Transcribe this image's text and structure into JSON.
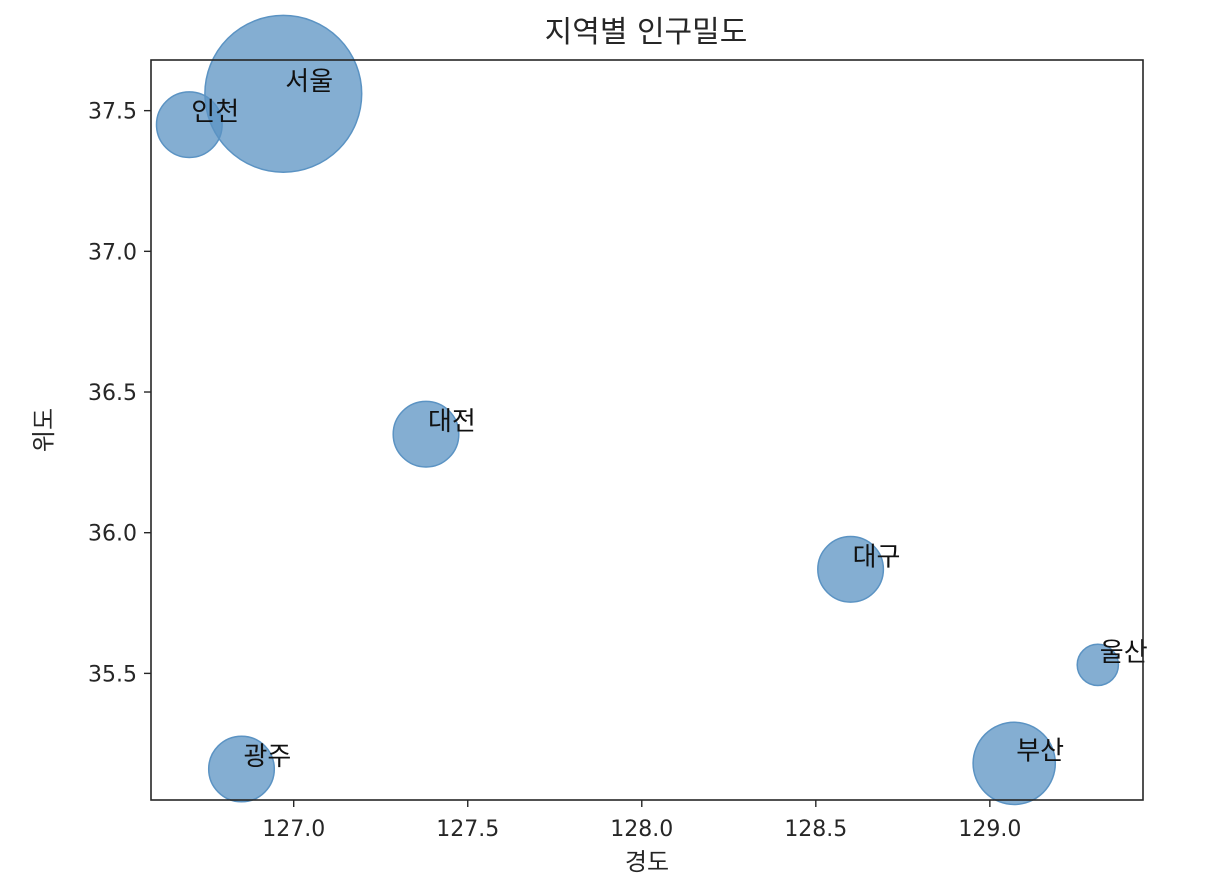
{
  "chart_data": {
    "type": "scatter",
    "title": "지역별 인구밀도",
    "xlabel": "경도",
    "ylabel": "위도",
    "xlim": [
      126.59,
      129.44
    ],
    "ylim": [
      35.05,
      37.68
    ],
    "xticks": [
      127.0,
      127.5,
      128.0,
      128.5,
      129.0
    ],
    "yticks": [
      35.5,
      36.0,
      36.5,
      37.0,
      37.5
    ],
    "grid": false,
    "marker_color": "#5b93c3",
    "points": [
      {
        "label": "서울",
        "x": 126.97,
        "y": 37.56,
        "size": 16000
      },
      {
        "label": "인천",
        "x": 126.7,
        "y": 37.45,
        "size": 2800
      },
      {
        "label": "대전",
        "x": 127.38,
        "y": 36.35,
        "size": 2800
      },
      {
        "label": "대구",
        "x": 128.6,
        "y": 35.87,
        "size": 2800
      },
      {
        "label": "울산",
        "x": 129.31,
        "y": 35.53,
        "size": 1100
      },
      {
        "label": "광주",
        "x": 126.85,
        "y": 35.16,
        "size": 2800
      },
      {
        "label": "부산",
        "x": 129.07,
        "y": 35.18,
        "size": 4400
      }
    ]
  }
}
